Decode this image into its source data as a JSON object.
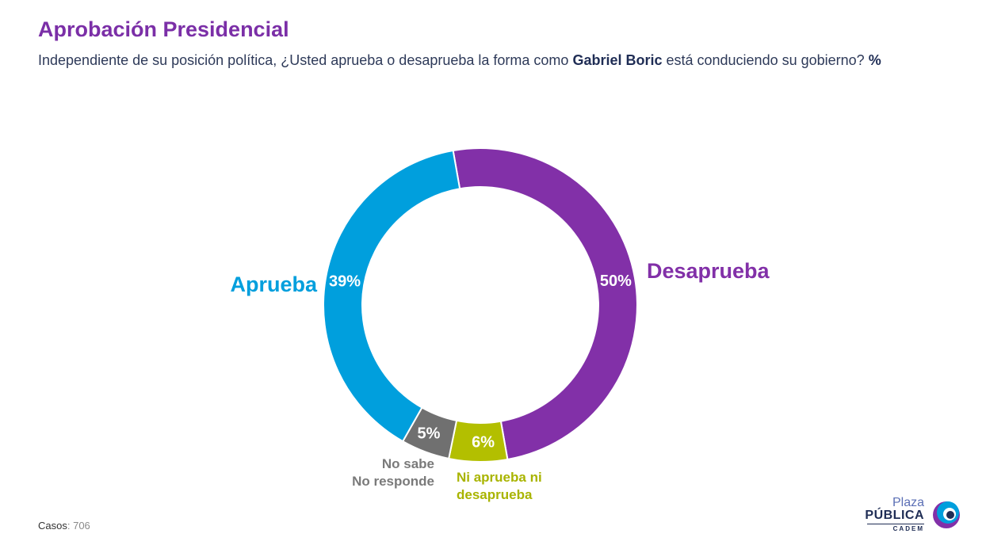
{
  "header": {
    "title": "Aprobación Presidencial",
    "subtitle_pre": "Independiente de su posición política, ¿Usted aprueba o desaprueba la forma como ",
    "subtitle_bold": "Gabriel Boric",
    "subtitle_post": " está conduciendo su gobierno? ",
    "subtitle_unit": "%"
  },
  "chart_data": {
    "type": "pie",
    "style": "donut",
    "unit": "%",
    "slices": [
      {
        "name": "Desaprueba",
        "value": 50,
        "label": "50%",
        "color": "#8230a8",
        "label_color": "#8230a8"
      },
      {
        "name": "Ni aprueba ni desaprueba",
        "value": 6,
        "label": "6%",
        "color": "#b3bf00",
        "label_color": "#a9b400"
      },
      {
        "name": "No sabe No responde",
        "value": 5,
        "label": "5%",
        "color": "#707070",
        "label_color": "#7a7a7a"
      },
      {
        "name": "Aprueba",
        "value": 39,
        "label": "39%",
        "color": "#009fdd",
        "label_color": "#009fdd"
      }
    ]
  },
  "category_labels": {
    "desaprueba": "Desaprueba",
    "aprueba": "Aprueba",
    "ni_line1": "Ni aprueba ni",
    "ni_line2": "desaprueba",
    "ns_line1": "No sabe",
    "ns_line2": "No responde"
  },
  "footer": {
    "cases_label": "Casos",
    "cases_value": ": 706"
  },
  "logo": {
    "plaza": "Plaza",
    "publica": "PÚBLICA",
    "cadem": "CADEM"
  }
}
